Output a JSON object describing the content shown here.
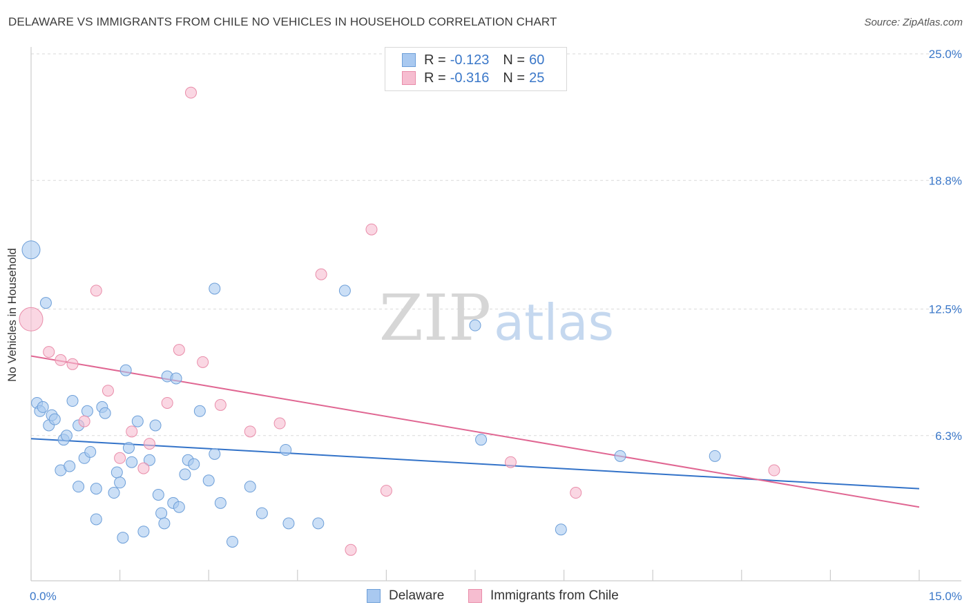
{
  "title": "DELAWARE VS IMMIGRANTS FROM CHILE NO VEHICLES IN HOUSEHOLD CORRELATION CHART",
  "source": "Source: ZipAtlas.com",
  "watermark": {
    "zip": "ZIP",
    "atlas": "atlas"
  },
  "colors": {
    "delaware_fill": "#a9c9f0",
    "delaware_stroke": "#6c9ed8",
    "delaware_line": "#3272c8",
    "chile_fill": "#f6bdd0",
    "chile_stroke": "#e98ca9",
    "chile_line": "#e06692",
    "axis_text": "#3b78c9",
    "grid": "#d9d9d9"
  },
  "legend_top": [
    {
      "r_label": "R =",
      "r_value": "-0.123",
      "n_label": "N =",
      "n_value": "60"
    },
    {
      "r_label": "R =",
      "r_value": "-0.316",
      "n_label": "N =",
      "n_value": "25"
    }
  ],
  "legend_bottom": [
    "Delaware",
    "Immigrants from Chile"
  ],
  "chart_data": {
    "type": "scatter",
    "xlabel": "",
    "ylabel": "No Vehicles in Household",
    "xlim": [
      0,
      15
    ],
    "ylim": [
      0,
      25
    ],
    "x_tick_labels": [
      "0.0%",
      "15.0%"
    ],
    "y_ticks": [
      6.3,
      12.5,
      18.8,
      25.0
    ],
    "y_tick_labels": [
      "6.3%",
      "12.5%",
      "18.8%",
      "25.0%"
    ],
    "grid": "horizontal dashed",
    "series": [
      {
        "name": "Delaware",
        "points": [
          [
            0.0,
            15.4
          ],
          [
            0.1,
            7.9
          ],
          [
            0.15,
            7.5
          ],
          [
            0.2,
            7.7
          ],
          [
            0.25,
            12.8
          ],
          [
            0.3,
            6.8
          ],
          [
            0.35,
            7.3
          ],
          [
            0.4,
            7.1
          ],
          [
            0.5,
            4.6
          ],
          [
            0.55,
            6.1
          ],
          [
            0.6,
            6.3
          ],
          [
            0.65,
            4.8
          ],
          [
            0.7,
            8.0
          ],
          [
            0.8,
            3.8
          ],
          [
            0.8,
            6.8
          ],
          [
            0.9,
            5.2
          ],
          [
            0.95,
            7.5
          ],
          [
            1.0,
            5.5
          ],
          [
            1.1,
            3.7
          ],
          [
            1.1,
            2.2
          ],
          [
            1.2,
            7.7
          ],
          [
            1.25,
            7.4
          ],
          [
            1.4,
            3.5
          ],
          [
            1.45,
            4.5
          ],
          [
            1.5,
            4.0
          ],
          [
            1.55,
            1.3
          ],
          [
            1.6,
            9.5
          ],
          [
            1.65,
            5.7
          ],
          [
            1.7,
            5.0
          ],
          [
            1.8,
            7.0
          ],
          [
            1.9,
            1.6
          ],
          [
            2.0,
            5.1
          ],
          [
            2.1,
            6.8
          ],
          [
            2.15,
            3.4
          ],
          [
            2.2,
            2.5
          ],
          [
            2.25,
            2.0
          ],
          [
            2.3,
            9.2
          ],
          [
            2.4,
            3.0
          ],
          [
            2.45,
            9.1
          ],
          [
            2.5,
            2.8
          ],
          [
            2.6,
            4.4
          ],
          [
            2.65,
            5.1
          ],
          [
            2.75,
            4.9
          ],
          [
            2.85,
            7.5
          ],
          [
            3.0,
            4.1
          ],
          [
            3.1,
            5.4
          ],
          [
            3.1,
            13.5
          ],
          [
            3.2,
            3.0
          ],
          [
            3.4,
            1.1
          ],
          [
            3.7,
            3.8
          ],
          [
            3.9,
            2.5
          ],
          [
            4.3,
            5.6
          ],
          [
            4.35,
            2.0
          ],
          [
            4.85,
            2.0
          ],
          [
            5.3,
            13.4
          ],
          [
            7.5,
            11.7
          ],
          [
            7.6,
            6.1
          ],
          [
            8.95,
            1.7
          ],
          [
            9.95,
            5.3
          ],
          [
            11.55,
            5.3
          ]
        ],
        "sizes": [
          "large",
          "normal",
          "normal",
          "normal",
          "normal",
          "normal",
          "normal",
          "normal",
          "normal",
          "normal",
          "normal",
          "normal",
          "normal",
          "normal",
          "normal",
          "normal",
          "normal",
          "normal",
          "normal",
          "normal",
          "normal",
          "normal",
          "normal",
          "normal",
          "normal",
          "normal",
          "normal",
          "normal",
          "normal",
          "normal",
          "normal",
          "normal",
          "normal",
          "normal",
          "normal",
          "normal",
          "normal",
          "normal",
          "normal",
          "normal",
          "normal",
          "normal",
          "normal",
          "normal",
          "normal",
          "normal",
          "normal",
          "normal",
          "normal",
          "normal",
          "normal",
          "normal",
          "normal",
          "normal",
          "normal",
          "normal",
          "normal",
          "normal",
          "normal",
          "normal"
        ],
        "trend": {
          "x0": 0,
          "y0": 6.15,
          "x1": 15,
          "y1": 3.7
        }
      },
      {
        "name": "Immigrants from Chile",
        "points": [
          [
            0.0,
            12.0
          ],
          [
            0.3,
            10.4
          ],
          [
            0.5,
            10.0
          ],
          [
            0.7,
            9.8
          ],
          [
            0.9,
            7.0
          ],
          [
            1.1,
            13.4
          ],
          [
            1.3,
            8.5
          ],
          [
            1.5,
            5.2
          ],
          [
            1.7,
            6.5
          ],
          [
            1.9,
            4.7
          ],
          [
            2.0,
            5.9
          ],
          [
            2.3,
            7.9
          ],
          [
            2.5,
            10.5
          ],
          [
            2.9,
            9.9
          ],
          [
            3.2,
            7.8
          ],
          [
            3.7,
            6.5
          ],
          [
            4.2,
            6.9
          ],
          [
            4.9,
            14.2
          ],
          [
            5.4,
            0.7
          ],
          [
            5.75,
            16.4
          ],
          [
            6.0,
            3.6
          ],
          [
            8.1,
            5.0
          ],
          [
            9.2,
            3.5
          ],
          [
            12.55,
            4.6
          ],
          [
            2.7,
            23.1
          ]
        ],
        "sizes": [
          "large",
          "normal",
          "normal",
          "normal",
          "normal",
          "normal",
          "normal",
          "normal",
          "normal",
          "normal",
          "normal",
          "normal",
          "normal",
          "normal",
          "normal",
          "normal",
          "normal",
          "normal",
          "normal",
          "normal",
          "normal",
          "normal",
          "normal",
          "normal",
          "normal"
        ],
        "trend": {
          "x0": 0,
          "y0": 10.2,
          "x1": 15,
          "y1": 2.8
        }
      }
    ]
  }
}
